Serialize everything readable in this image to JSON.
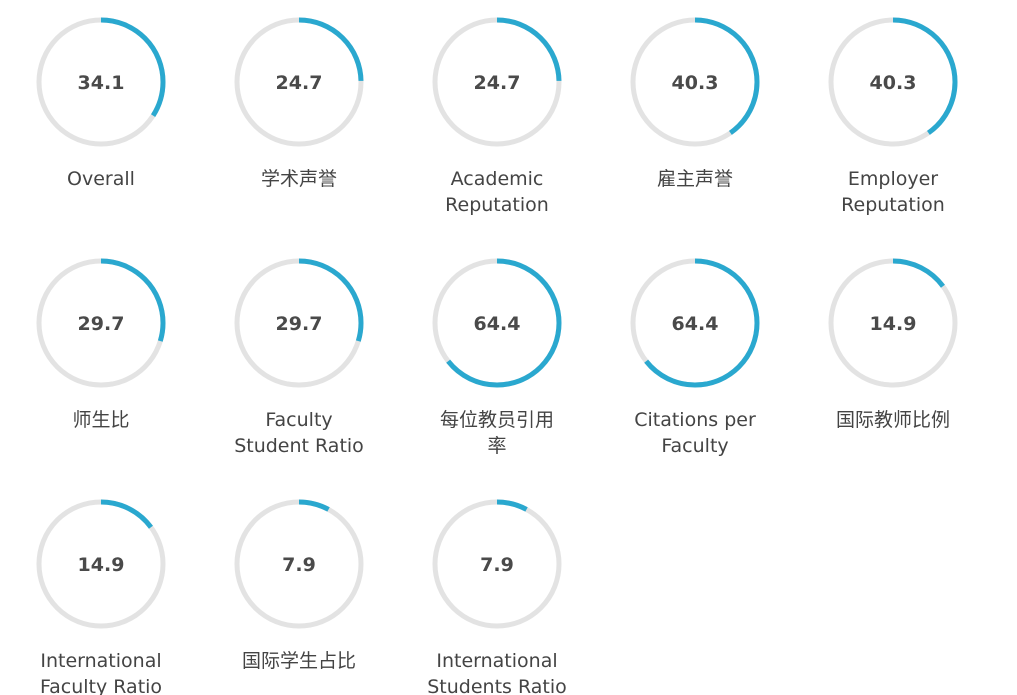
{
  "chart_data": {
    "type": "donut-gauges",
    "max": 100,
    "colors": {
      "track": "#e3e3e3",
      "fill": "#2aa8cf"
    },
    "items": [
      {
        "label": "Overall",
        "value": 34.1
      },
      {
        "label": "学术声誉",
        "value": 24.7
      },
      {
        "label": "Academic\nReputation",
        "value": 24.7
      },
      {
        "label": "雇主声誉",
        "value": 40.3
      },
      {
        "label": "Employer\nReputation",
        "value": 40.3
      },
      {
        "label": "师生比",
        "value": 29.7
      },
      {
        "label": "Faculty\nStudent Ratio",
        "value": 29.7
      },
      {
        "label": "每位教员引用\n率",
        "value": 64.4
      },
      {
        "label": "Citations per\nFaculty",
        "value": 64.4
      },
      {
        "label": "国际教师比例",
        "value": 14.9
      },
      {
        "label": "International\nFaculty Ratio",
        "value": 14.9
      },
      {
        "label": "国际学生占比",
        "value": 7.9
      },
      {
        "label": "International\nStudents Ratio",
        "value": 7.9
      }
    ]
  }
}
